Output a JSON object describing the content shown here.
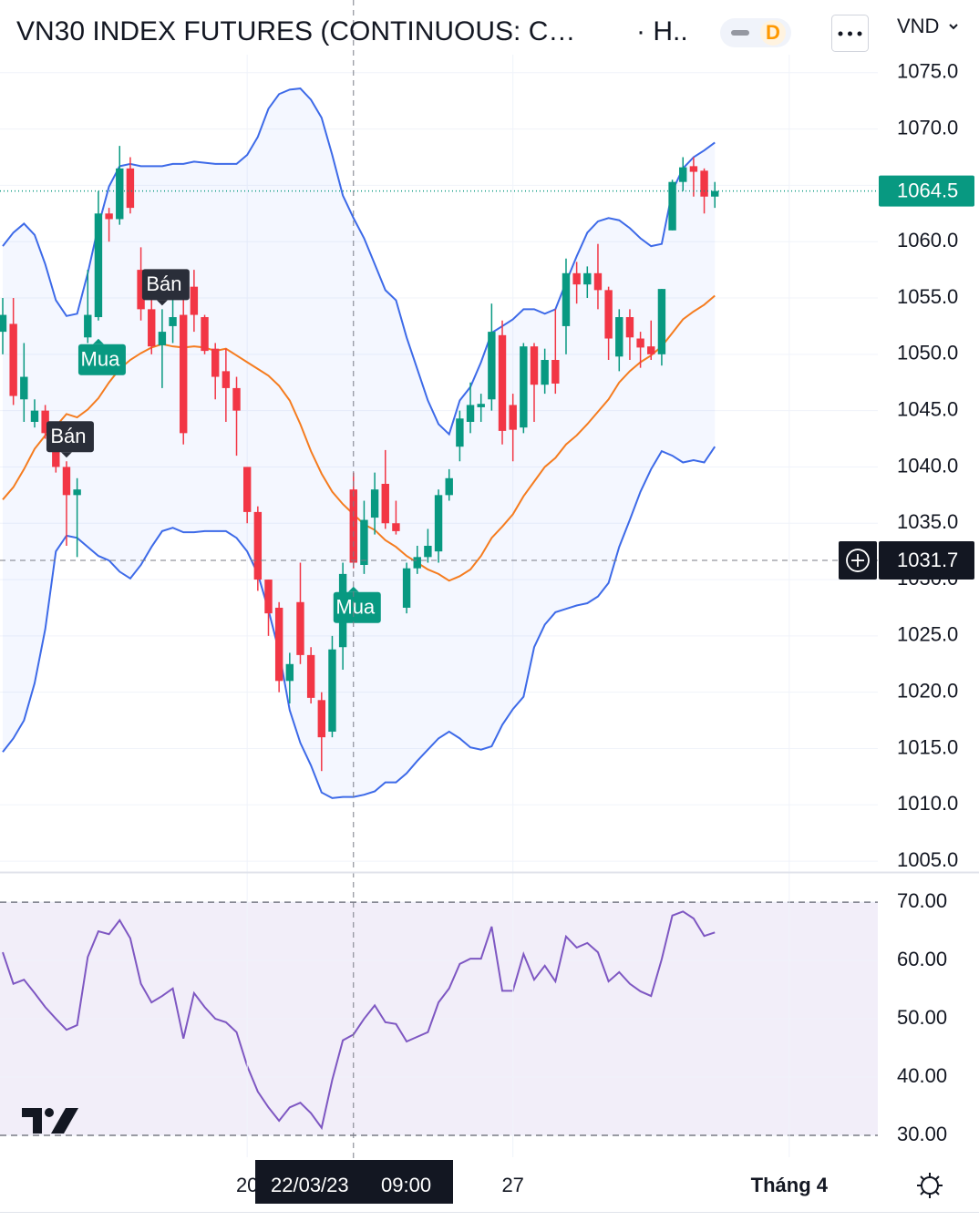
{
  "chart_data": [
    {
      "type": "candlestick",
      "title": "VN30 INDEX FUTURES (CONTINUOUS: C…",
      "interval": "· H..",
      "badge": "D",
      "currency": "VND",
      "up_color": "#089981",
      "down_color": "#f23645",
      "open": [
        1052,
        1052.7,
        1046,
        1044,
        1045,
        1043,
        1040,
        1037.5,
        1051.5,
        1053.3,
        1062.5,
        1062,
        1066.5,
        1057.5,
        1054,
        1050.8,
        1052.5,
        1053.5,
        1056,
        1053.3,
        1050.5,
        1048.5,
        1047,
        1040,
        1036,
        1030,
        1027.5,
        1021,
        1028,
        1023.3,
        1019.3,
        1016.5,
        1024,
        1038,
        1031.3,
        1035.5,
        1038.5,
        1035,
        1027.5,
        1031,
        1032,
        1032.5,
        1037.5,
        1041.8,
        1044,
        1045.3,
        1046,
        1051.7,
        1045.5,
        1043.5,
        1050.7,
        1047.3,
        1049.5,
        1052.5,
        1057.2,
        1056.2,
        1057.2,
        1055.7,
        1049.8,
        1053.3,
        1051.4,
        1050.7,
        1050,
        1061,
        1065.3,
        1066.7,
        1066.3,
        1064
      ],
      "high": [
        1055,
        1055,
        1051,
        1046,
        1045.5,
        1044,
        1040.5,
        1039,
        1057.5,
        1064.5,
        1063,
        1068.5,
        1067.5,
        1059.5,
        1055,
        1054,
        1057,
        1055,
        1057.5,
        1053.5,
        1051,
        1050.5,
        1048,
        1040,
        1036.5,
        1030,
        1028,
        1023.5,
        1031.5,
        1024,
        1020,
        1025,
        1031.5,
        1039.5,
        1037,
        1039.5,
        1041.5,
        1037,
        1031.5,
        1033,
        1034.5,
        1038,
        1039.8,
        1045,
        1047.5,
        1046.5,
        1054.5,
        1053,
        1046.5,
        1051,
        1051,
        1050.5,
        1054,
        1058.5,
        1058.2,
        1057.8,
        1059.8,
        1056,
        1054,
        1054,
        1052,
        1053,
        1055.8,
        1065.5,
        1067.5,
        1067.5,
        1066.5,
        1065.3
      ],
      "low": [
        1050,
        1045.5,
        1044,
        1043.5,
        1042.5,
        1039.5,
        1033,
        1032,
        1051,
        1053,
        1060,
        1061.5,
        1062.5,
        1053,
        1050,
        1047,
        1051,
        1042,
        1052,
        1050,
        1046,
        1044,
        1041,
        1035,
        1029,
        1025,
        1020,
        1019,
        1022.5,
        1019,
        1013,
        1016,
        1022,
        1031,
        1030.5,
        1034,
        1034.5,
        1034,
        1027,
        1030.5,
        1031.5,
        1031.5,
        1037,
        1040.5,
        1043,
        1044,
        1045,
        1042,
        1040.5,
        1043,
        1044,
        1046.5,
        1046.5,
        1050,
        1054.5,
        1055,
        1054,
        1049.5,
        1048.5,
        1049.5,
        1048.8,
        1049.5,
        1049,
        1061,
        1064.5,
        1064,
        1062.5,
        1063
      ],
      "close": [
        1053.5,
        1046.3,
        1048,
        1045,
        1043,
        1040,
        1037.5,
        1038,
        1053.5,
        1062.5,
        1062,
        1066.5,
        1063,
        1054,
        1050.7,
        1052,
        1053.3,
        1043,
        1053.5,
        1050.3,
        1048,
        1047,
        1045,
        1036,
        1030,
        1027,
        1021,
        1022.5,
        1023.3,
        1019.5,
        1016,
        1023.8,
        1030.5,
        1031.5,
        1035.3,
        1038,
        1035,
        1034.3,
        1031,
        1032,
        1033,
        1037.5,
        1039,
        1044.3,
        1045.5,
        1045.6,
        1052,
        1043.2,
        1043.3,
        1050.7,
        1047.3,
        1049.5,
        1047.4,
        1057.2,
        1056.2,
        1057.2,
        1055.7,
        1051.4,
        1053.3,
        1051.5,
        1050.6,
        1050,
        1055.8,
        1065.3,
        1066.6,
        1066.2,
        1064,
        1064.5
      ],
      "bands": {
        "upper": [
          1059.6,
          1060.8,
          1061.6,
          1060.6,
          1058,
          1054.8,
          1053.4,
          1053.6,
          1057.2,
          1061.4,
          1064.9,
          1066.7,
          1066.9,
          1066.7,
          1066.7,
          1066.7,
          1066.9,
          1066.9,
          1067.1,
          1067,
          1066.9,
          1066.9,
          1066.9,
          1067.7,
          1069.3,
          1071.8,
          1073.1,
          1073.5,
          1073.6,
          1072.6,
          1071,
          1067.7,
          1064.1,
          1062.1,
          1060.3,
          1058,
          1055.7,
          1054.8,
          1051.5,
          1048.7,
          1045.9,
          1043.8,
          1042.9,
          1045.9,
          1047.1,
          1049.3,
          1051.9,
          1052.5,
          1053.1,
          1054,
          1054,
          1053.6,
          1054,
          1056.4,
          1058.7,
          1060.8,
          1061.8,
          1062.1,
          1061.9,
          1061.2,
          1060.3,
          1059.6,
          1059.8,
          1064.5,
          1066.5,
          1067.5,
          1068.1,
          1068.8
        ],
        "basis": [
          1037.1,
          1038.2,
          1039.8,
          1041.6,
          1042.8,
          1043.6,
          1044.7,
          1044.4,
          1045.1,
          1046.1,
          1047.5,
          1048.7,
          1049.5,
          1050.1,
          1050.6,
          1050.9,
          1050.7,
          1050.6,
          1050.7,
          1050.6,
          1050.3,
          1050.5,
          1049.9,
          1049.3,
          1048.7,
          1048.1,
          1047.2,
          1045.9,
          1043.8,
          1041.4,
          1039.4,
          1037.8,
          1036.7,
          1035.8,
          1034.9,
          1034.4,
          1033.5,
          1032.9,
          1032.1,
          1031.5,
          1030.9,
          1030.5,
          1029.9,
          1030.3,
          1030.9,
          1032.1,
          1033.7,
          1034.7,
          1035.8,
          1037.4,
          1038.7,
          1040,
          1040.8,
          1042,
          1042.8,
          1043.8,
          1044.9,
          1046,
          1047.5,
          1048.5,
          1049.3,
          1049.9,
          1050.7,
          1051.9,
          1053.1,
          1053.8,
          1054.4,
          1055.2
        ],
        "lower": [
          1014.7,
          1015.9,
          1017.5,
          1020.8,
          1025.6,
          1032.5,
          1033.9,
          1033.7,
          1032.9,
          1032.1,
          1031.7,
          1030.7,
          1030.1,
          1031.3,
          1032.9,
          1034.3,
          1034.6,
          1034.2,
          1034.2,
          1034.3,
          1034.3,
          1034.3,
          1033.7,
          1032.5,
          1030.5,
          1027.3,
          1023.6,
          1018.4,
          1015.5,
          1013.5,
          1011.1,
          1010.6,
          1010.7,
          1010.7,
          1010.9,
          1011.2,
          1012,
          1012,
          1012.8,
          1013.9,
          1014.9,
          1015.9,
          1016.5,
          1015.9,
          1015.1,
          1014.9,
          1015.2,
          1017.1,
          1018.5,
          1019.6,
          1024,
          1026,
          1027.1,
          1027.4,
          1027.7,
          1027.9,
          1028.5,
          1029.7,
          1032.9,
          1035.3,
          1037.8,
          1039.8,
          1041.4,
          1041,
          1040.4,
          1040.6,
          1040.4,
          1041.8
        ],
        "band_color": "#3d6ae8",
        "basis_color": "#f57c1f",
        "fill": "rgba(41,98,255,0.05)"
      },
      "signals": [
        {
          "text": "Bán",
          "candle": 6,
          "position": "above",
          "color": "#2a2e39"
        },
        {
          "text": "Mua",
          "candle": 9,
          "position": "below",
          "color": "#089981"
        },
        {
          "text": "Bán",
          "candle": 15,
          "position": "above",
          "color": "#2a2e39"
        },
        {
          "text": "Mua",
          "candle": 33,
          "position": "below",
          "color": "#089981"
        }
      ],
      "ylim": [
        1004.2,
        1076.6
      ],
      "yticks": [
        {
          "value": 1005,
          "label": "1005.0"
        },
        {
          "value": 1010,
          "label": "1010.0"
        },
        {
          "value": 1015,
          "label": "1015.0"
        },
        {
          "value": 1020,
          "label": "1020.0"
        },
        {
          "value": 1025,
          "label": "1025.0"
        },
        {
          "value": 1030,
          "label": "1030.0"
        },
        {
          "value": 1035,
          "label": "1035.0"
        },
        {
          "value": 1040,
          "label": "1040.0"
        },
        {
          "value": 1045,
          "label": "1045.0"
        },
        {
          "value": 1050,
          "label": "1050.0"
        },
        {
          "value": 1055,
          "label": "1055.0"
        },
        {
          "value": 1060,
          "label": "1060.0"
        },
        {
          "value": 1065,
          "label": "1065.0"
        },
        {
          "value": 1070,
          "label": "1070.0"
        },
        {
          "value": 1075,
          "label": "1075.0"
        }
      ],
      "last_price": 1064.5,
      "crosshair": {
        "candle": 33,
        "value": 1031.7,
        "date": "22/03/23",
        "time": "09:00"
      },
      "xticks": [
        {
          "label": "20",
          "candle": 23
        },
        {
          "label": "27",
          "candle": 48
        },
        {
          "label": "Tháng 4",
          "candle": 74
        }
      ],
      "grid": true
    },
    {
      "type": "line",
      "name": "RSI",
      "color": "#7e57c2",
      "band_fill": "rgba(126,87,194,0.1)",
      "values": [
        61.4,
        56,
        56.7,
        54.4,
        52,
        50,
        48.1,
        48.9,
        60.6,
        65,
        64.5,
        66.9,
        63.8,
        56,
        52.8,
        53.9,
        55.2,
        46.6,
        54.4,
        52,
        50,
        49.4,
        47.7,
        41.9,
        37.5,
        34.8,
        32.5,
        34.8,
        35.6,
        33.8,
        31.3,
        39.5,
        46.3,
        47.3,
        50,
        52.3,
        49.4,
        49.1,
        46.1,
        46.9,
        47.7,
        52.8,
        55.2,
        59.4,
        60.3,
        60.3,
        65.8,
        54.8,
        54.8,
        61.1,
        56.7,
        59.1,
        56.4,
        64.1,
        62.2,
        63,
        61.4,
        56.4,
        58,
        56,
        54.7,
        53.9,
        60.2,
        67.7,
        68.4,
        67.2,
        64.2,
        64.8
      ],
      "band": {
        "low": 30,
        "high": 70
      },
      "ylim": [
        26.25,
        74.7
      ],
      "yticks": [
        {
          "value": 30,
          "label": "30.00"
        },
        {
          "value": 40,
          "label": "40.00"
        },
        {
          "value": 50,
          "label": "50.00"
        },
        {
          "value": 60,
          "label": "60.00"
        },
        {
          "value": 70,
          "label": "70.00"
        }
      ],
      "grid": true
    }
  ]
}
